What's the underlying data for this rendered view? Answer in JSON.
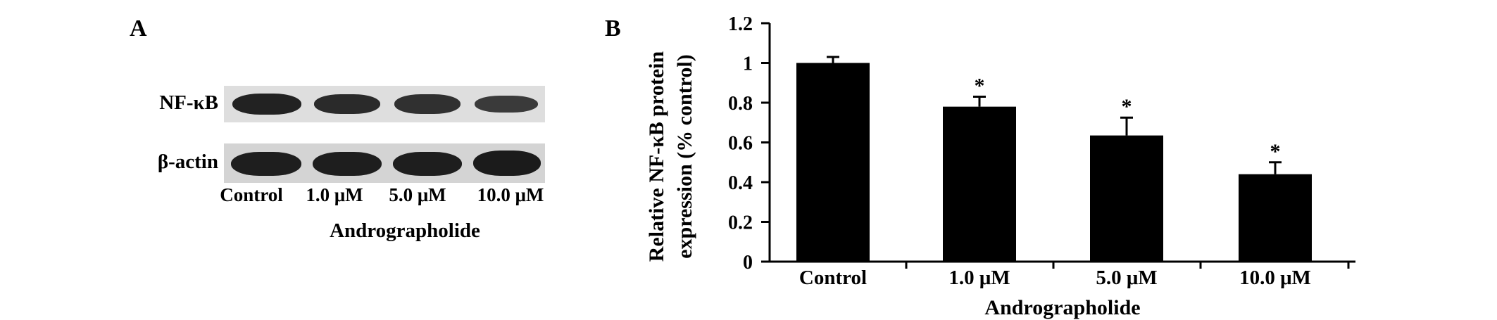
{
  "panel_a": {
    "label": "A",
    "row_labels": {
      "nfkb": "NF-κB",
      "actin": "β-actin"
    },
    "lanes": [
      "Control",
      "1.0 μM",
      "5.0 μM",
      "10.0 μM"
    ],
    "group_label": "Andrographolide"
  },
  "panel_b": {
    "label": "B"
  },
  "chart_data": {
    "type": "bar",
    "categories": [
      "Control",
      "1.0 μM",
      "5.0 μM",
      "10.0 μM"
    ],
    "values": [
      1.0,
      0.78,
      0.635,
      0.44
    ],
    "errors": [
      0.03,
      0.05,
      0.09,
      0.06
    ],
    "significance": [
      "",
      "*",
      "*",
      "*"
    ],
    "xlabel": "Andrographolide",
    "ylabel_lines": [
      "Relative NF-κB protein",
      "expression (% control)"
    ],
    "ylim": [
      0,
      1.2
    ],
    "yticks": [
      0,
      0.2,
      0.4,
      0.6,
      0.8,
      1,
      1.2
    ],
    "ytick_labels": [
      "0",
      "0.2",
      "0.4",
      "0.6",
      "0.8",
      "1",
      "1.2"
    ],
    "grid": false,
    "bar_color": "#000000"
  }
}
